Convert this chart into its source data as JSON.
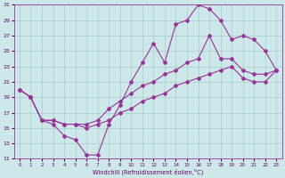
{
  "xlabel": "Windchill (Refroidissement éolien,°C)",
  "bg_color": "#cce8e8",
  "line_color": "#993399",
  "grid_color": "#aacccc",
  "xlim": [
    -0.5,
    23.5
  ],
  "ylim": [
    11,
    31
  ],
  "xticks": [
    0,
    1,
    2,
    3,
    4,
    5,
    6,
    7,
    8,
    9,
    10,
    11,
    12,
    13,
    14,
    15,
    16,
    17,
    18,
    19,
    20,
    21,
    22,
    23
  ],
  "yticks": [
    11,
    13,
    15,
    17,
    19,
    21,
    23,
    25,
    27,
    29,
    31
  ],
  "curve1_x": [
    0,
    1,
    2,
    3,
    4,
    5,
    6,
    7,
    8,
    9,
    10,
    11,
    12,
    13,
    14,
    15,
    16,
    17,
    18,
    19,
    20,
    21,
    22,
    23
  ],
  "curve1_y": [
    20.0,
    19.0,
    16.0,
    15.5,
    14.0,
    13.5,
    11.5,
    11.5,
    15.5,
    18.0,
    21.0,
    23.5,
    26.0,
    23.5,
    28.5,
    29.0,
    31.0,
    30.5,
    29.0,
    26.5,
    27.0,
    26.5,
    25.0,
    22.5
  ],
  "curve2_x": [
    0,
    1,
    2,
    3,
    4,
    5,
    6,
    7,
    8,
    9,
    10,
    11,
    12,
    13,
    14,
    15,
    16,
    17,
    18,
    19,
    20,
    21,
    22,
    23
  ],
  "curve2_y": [
    20.0,
    19.0,
    16.0,
    16.0,
    15.5,
    15.5,
    15.5,
    16.0,
    17.5,
    18.5,
    19.5,
    20.5,
    21.0,
    22.0,
    22.5,
    23.5,
    24.0,
    27.0,
    24.0,
    24.0,
    22.5,
    22.0,
    22.0,
    22.5
  ],
  "curve3_x": [
    0,
    1,
    2,
    3,
    4,
    5,
    6,
    7,
    8,
    9,
    10,
    11,
    12,
    13,
    14,
    15,
    16,
    17,
    18,
    19,
    20,
    21,
    22,
    23
  ],
  "curve3_y": [
    20.0,
    19.0,
    16.0,
    16.0,
    15.5,
    15.5,
    15.0,
    15.5,
    16.0,
    17.0,
    17.5,
    18.5,
    19.0,
    19.5,
    20.5,
    21.0,
    21.5,
    22.0,
    22.5,
    23.0,
    21.5,
    21.0,
    21.0,
    22.5
  ]
}
